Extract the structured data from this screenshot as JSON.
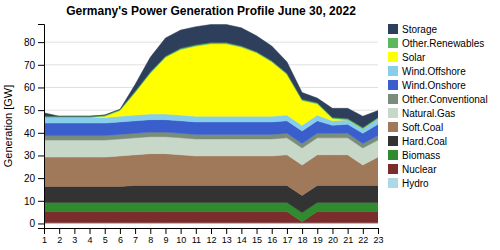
{
  "chart_data": {
    "type": "area",
    "stacked": true,
    "title": "Germany's Power Generation Profile June 30, 2022",
    "ylabel": "Generation [GW]",
    "x": [
      1,
      2,
      3,
      4,
      5,
      6,
      7,
      8,
      9,
      10,
      11,
      12,
      13,
      14,
      15,
      16,
      17,
      18,
      19,
      20,
      21,
      22,
      23
    ],
    "xlim": [
      1,
      23
    ],
    "xticks": [
      1,
      2,
      3,
      4,
      5,
      6,
      7,
      8,
      9,
      10,
      11,
      12,
      13,
      14,
      15,
      16,
      17,
      18,
      19,
      20,
      21,
      22,
      23
    ],
    "ylim": [
      -2,
      88
    ],
    "yticks": [
      0,
      10,
      20,
      30,
      40,
      50,
      60,
      70,
      80
    ],
    "grid": true,
    "legend": "right",
    "series": [
      {
        "name": "Hydro",
        "color": "#add8e6",
        "values": [
          0.3,
          0.3,
          0.3,
          0.3,
          0.3,
          0.3,
          0.3,
          0.3,
          0.3,
          0.3,
          0.3,
          0.3,
          0.3,
          0.3,
          0.3,
          0.3,
          0.3,
          0.3,
          0.3,
          0.3,
          0.3,
          0.3,
          0.3
        ]
      },
      {
        "name": "Nuclear",
        "color": "#7b2d2d",
        "values": [
          5.0,
          5.0,
          5.0,
          5.0,
          5.0,
          5.0,
          5.0,
          5.0,
          5.0,
          5.0,
          5.0,
          5.0,
          5.0,
          5.0,
          5.0,
          5.0,
          5.0,
          0.5,
          5.0,
          5.0,
          5.0,
          5.0,
          5.0
        ]
      },
      {
        "name": "Biomass",
        "color": "#2e8b2e",
        "values": [
          4.0,
          4.0,
          4.0,
          4.0,
          4.0,
          4.0,
          4.0,
          4.0,
          4.0,
          4.0,
          4.0,
          4.0,
          4.0,
          4.0,
          4.0,
          4.0,
          4.0,
          4.0,
          4.0,
          4.0,
          4.0,
          4.0,
          4.0
        ]
      },
      {
        "name": "Hard.Coal",
        "color": "#333333",
        "values": [
          7.0,
          7.0,
          7.0,
          7.0,
          7.0,
          7.0,
          7.5,
          7.5,
          7.5,
          7.5,
          7.5,
          7.5,
          7.5,
          7.5,
          7.5,
          7.5,
          7.5,
          7.5,
          7.5,
          7.5,
          7.5,
          7.5,
          7.5
        ]
      },
      {
        "name": "Soft.Coal",
        "color": "#a0785a",
        "values": [
          13.0,
          13.0,
          13.0,
          13.0,
          13.0,
          13.5,
          13.5,
          14.0,
          14.0,
          13.5,
          13.0,
          13.0,
          13.0,
          13.0,
          13.0,
          13.0,
          13.5,
          13.5,
          13.5,
          13.5,
          13.5,
          9.0,
          12.5
        ]
      },
      {
        "name": "Natural.Gas",
        "color": "#c8d8c8",
        "values": [
          7.5,
          7.5,
          7.5,
          7.5,
          7.5,
          7.5,
          7.5,
          7.5,
          7.5,
          7.5,
          7.5,
          7.5,
          7.5,
          7.5,
          7.5,
          7.5,
          7.5,
          7.5,
          7.5,
          7.5,
          7.5,
          7.5,
          7.5
        ]
      },
      {
        "name": "Other.Conventional",
        "color": "#7a8c7a",
        "values": [
          2.0,
          2.0,
          2.0,
          2.0,
          2.0,
          2.0,
          2.0,
          2.0,
          2.0,
          2.0,
          2.0,
          2.0,
          2.0,
          2.0,
          2.0,
          2.0,
          2.0,
          2.0,
          2.0,
          2.0,
          2.0,
          2.0,
          2.0
        ]
      },
      {
        "name": "Wind.Onshore",
        "color": "#3a5fcd",
        "values": [
          5.5,
          5.5,
          5.5,
          5.5,
          5.5,
          5.5,
          5.5,
          5.5,
          5.5,
          5.5,
          5.5,
          5.5,
          5.5,
          5.5,
          5.5,
          5.5,
          5.5,
          5.5,
          5.5,
          3.5,
          4.0,
          4.5,
          5.0
        ]
      },
      {
        "name": "Wind.Offshore",
        "color": "#87ceeb",
        "values": [
          2.5,
          2.5,
          2.5,
          2.5,
          2.5,
          2.5,
          2.5,
          2.5,
          2.5,
          2.5,
          2.5,
          2.5,
          2.5,
          2.5,
          2.5,
          2.5,
          2.5,
          2.5,
          2.5,
          2.0,
          2.0,
          2.0,
          2.5
        ]
      },
      {
        "name": "Solar",
        "color": "#ffff00",
        "values": [
          0.0,
          0.0,
          0.0,
          0.0,
          0.5,
          2.5,
          10.0,
          18.0,
          25.0,
          29.0,
          31.0,
          32.0,
          32.0,
          30.5,
          28.0,
          24.0,
          18.0,
          11.0,
          5.0,
          1.0,
          0.0,
          0.0,
          0.0
        ]
      },
      {
        "name": "Other.Renewables",
        "color": "#5cb85c",
        "values": [
          0.5,
          0.5,
          0.5,
          0.5,
          0.5,
          0.5,
          0.5,
          0.5,
          0.5,
          0.5,
          0.5,
          0.5,
          0.5,
          0.5,
          0.5,
          0.5,
          0.5,
          0.5,
          0.5,
          0.5,
          0.5,
          0.5,
          0.5
        ]
      },
      {
        "name": "Storage",
        "color": "#2e3f5c",
        "values": [
          1.5,
          0.0,
          0.0,
          0.0,
          0.0,
          0.0,
          3.0,
          6.5,
          8.0,
          8.0,
          8.0,
          8.0,
          8.0,
          8.0,
          7.0,
          6.5,
          5.0,
          3.0,
          2.0,
          4.0,
          4.5,
          5.0,
          3.0
        ]
      }
    ]
  }
}
